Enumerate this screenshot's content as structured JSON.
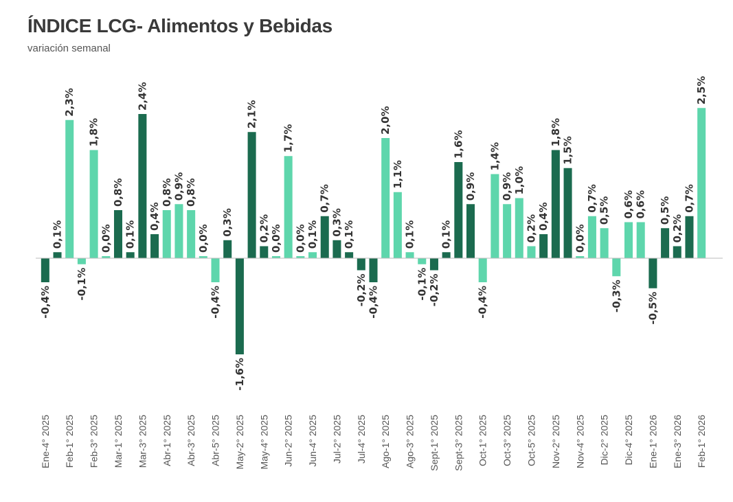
{
  "header": {
    "title": "ÍNDICE LCG- Alimentos y Bebidas",
    "subtitle": "variación semanal"
  },
  "colors": {
    "dark": "#1b6b4f",
    "light": "#5ed6ac",
    "axis": "#bbbbbb"
  },
  "chart_data": {
    "type": "bar",
    "title": "ÍNDICE LCG- Alimentos y Bebidas",
    "subtitle": "variación semanal",
    "xlabel": "",
    "ylabel": "",
    "ylim": [
      -1.6,
      2.5
    ],
    "grid": false,
    "legend": "none",
    "tick_labels": [
      "Ene-4° 2025",
      "Feb-1° 2025",
      "Feb-3° 2025",
      "Mar-1° 2025",
      "Mar-3° 2025",
      "Abr-1° 2025",
      "Abr-3° 2025",
      "Abr-5° 2025",
      "May-2° 2025",
      "May-4° 2025",
      "Jun-2° 2025",
      "Jun-4° 2025",
      "Jul-2° 2025",
      "Jul-4° 2025",
      "Ago-1° 2025",
      "Ago-3° 2025",
      "Sept-1° 2025",
      "Sept-3° 2025",
      "Oct-1° 2025",
      "Oct-3° 2025",
      "Oct-5° 2025",
      "Nov-2° 2025",
      "Nov-4° 2025",
      "Dic-2° 2025",
      "Dic-4° 2025",
      "Ene-1° 2026",
      "Ene-3° 2026",
      "Feb-1° 2026"
    ],
    "values": [
      -0.4,
      0.1,
      2.3,
      -0.1,
      1.8,
      0.0,
      0.8,
      0.1,
      2.4,
      0.4,
      0.8,
      0.9,
      0.8,
      0.0,
      -0.4,
      0.3,
      -1.6,
      2.1,
      0.2,
      0.0,
      1.7,
      0.0,
      0.1,
      0.7,
      0.3,
      0.1,
      -0.2,
      -0.4,
      2.0,
      1.1,
      0.1,
      -0.1,
      -0.2,
      0.1,
      1.6,
      0.9,
      -0.4,
      1.4,
      0.9,
      1.0,
      0.2,
      0.4,
      1.8,
      1.5,
      0.0,
      0.7,
      0.5,
      -0.3,
      0.6,
      0.6,
      -0.5,
      0.5,
      0.2,
      0.7,
      2.5
    ],
    "labels": [
      "-0,4%",
      "0,1%",
      "2,3%",
      "-0,1%",
      "1,8%",
      "0,0%",
      "0,8%",
      "0,1%",
      "2,4%",
      "0,4%",
      "0,8%",
      "0,9%",
      "0,8%",
      "0,0%",
      "-0,4%",
      "0,3%",
      "-1,6%",
      "2,1%",
      "0,2%",
      "0,0%",
      "1,7%",
      "0,0%",
      "0,1%",
      "0,7%",
      "0,3%",
      "0,1%",
      "-0,2%",
      "-0,4%",
      "2,0%",
      "1,1%",
      "0,1%",
      "-0,1%",
      "-0,2%",
      "0,1%",
      "1,6%",
      "0,9%",
      "-0,4%",
      "1,4%",
      "0,9%",
      "1,0%",
      "0,2%",
      "0,4%",
      "1,8%",
      "1,5%",
      "0,0%",
      "0,7%",
      "0,5%",
      "-0,3%",
      "0,6%",
      "0,6%",
      "-0,5%",
      "0,5%",
      "0,2%",
      "0,7%",
      "2,5%"
    ],
    "bar_colors": [
      "dark",
      "dark",
      "light",
      "light",
      "light",
      "light",
      "dark",
      "dark",
      "dark",
      "dark",
      "light",
      "light",
      "light",
      "light",
      "light",
      "dark",
      "dark",
      "dark",
      "dark",
      "light",
      "light",
      "light",
      "light",
      "dark",
      "dark",
      "dark",
      "dark",
      "dark",
      "light",
      "light",
      "light",
      "light",
      "dark",
      "dark",
      "dark",
      "dark",
      "light",
      "light",
      "light",
      "light",
      "light",
      "dark",
      "dark",
      "dark",
      "light",
      "light",
      "light",
      "light",
      "light",
      "light",
      "dark",
      "dark",
      "dark",
      "dark",
      "light"
    ]
  }
}
